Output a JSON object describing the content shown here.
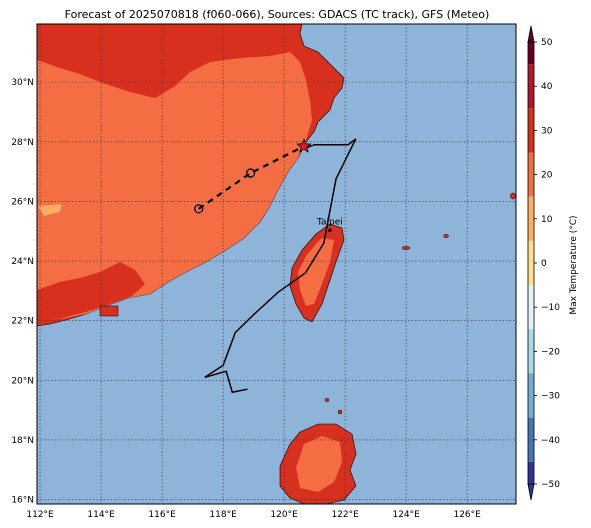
{
  "title": "Forecast of 2025070818 (f060-066), Sources: GDACS (TC track), GFS (Meteo)",
  "map": {
    "lon_labels": [
      "112°E",
      "114°E",
      "116°E",
      "118°E",
      "120°E",
      "122°E",
      "124°E",
      "126°E"
    ],
    "lat_labels": [
      "16°N",
      "18°N",
      "20°N",
      "22°N",
      "24°N",
      "26°N",
      "28°N",
      "30°N"
    ],
    "lon_range": [
      111.9,
      127.6
    ],
    "lat_range": [
      15.85,
      31.95
    ],
    "grid": true,
    "colors": {
      "ocean": "#8fb4d9",
      "hot": "#d7301f",
      "warm": "#f46d43",
      "light": "#fdae61"
    }
  },
  "city": {
    "name": "Taipei",
    "lon": 121.5,
    "lat": 25.03
  },
  "forecast_track": {
    "points": [
      {
        "lon": 117.2,
        "lat": 25.75
      },
      {
        "lon": 118.9,
        "lat": 26.95
      },
      {
        "lon": 120.65,
        "lat": 27.85
      }
    ]
  },
  "observed_track": {
    "points": [
      {
        "lon": 118.8,
        "lat": 19.7
      },
      {
        "lon": 118.3,
        "lat": 19.6
      },
      {
        "lon": 118.1,
        "lat": 20.3
      },
      {
        "lon": 117.4,
        "lat": 20.1
      },
      {
        "lon": 118.0,
        "lat": 20.5
      },
      {
        "lon": 118.4,
        "lat": 21.6
      },
      {
        "lon": 119.0,
        "lat": 22.2
      },
      {
        "lon": 119.8,
        "lat": 22.95
      },
      {
        "lon": 120.7,
        "lat": 23.6
      },
      {
        "lon": 121.3,
        "lat": 24.6
      },
      {
        "lon": 121.7,
        "lat": 26.75
      },
      {
        "lon": 122.35,
        "lat": 28.1
      },
      {
        "lon": 122.1,
        "lat": 27.9
      },
      {
        "lon": 121.0,
        "lat": 27.9
      },
      {
        "lon": 120.6,
        "lat": 27.75
      }
    ]
  },
  "colorbar": {
    "label": "Max Temperature (°C)",
    "ticks": [
      "50",
      "40",
      "30",
      "20",
      "10",
      "0",
      "−10",
      "−20",
      "−30",
      "−40",
      "−50"
    ],
    "colors": [
      "#67001f",
      "#b2182b",
      "#d7301f",
      "#f46d43",
      "#fdae61",
      "#fee090",
      "#e0f3f8",
      "#abd9e9",
      "#74add1",
      "#4575b4",
      "#313695"
    ]
  }
}
